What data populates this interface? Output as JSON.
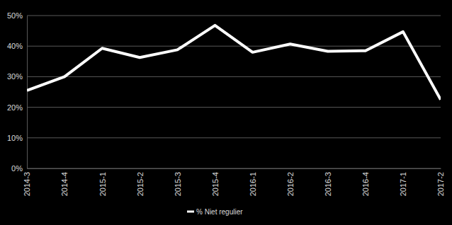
{
  "chart_data": {
    "type": "line",
    "categories": [
      "2014-3",
      "2014-4",
      "2015-1",
      "2015-2",
      "2015-3",
      "2015-4",
      "2016-1",
      "2016-2",
      "2016-3",
      "2016-4",
      "2017-1",
      "2017-2"
    ],
    "series": [
      {
        "name": "% Niet regulier",
        "color": "#ffffff",
        "line_style": "solid",
        "values": [
          25.5,
          30,
          39.3,
          36.3,
          38.8,
          46.8,
          38,
          40.7,
          38.3,
          38.5,
          44.7,
          22.5
        ]
      }
    ],
    "ylim": [
      0,
      50
    ],
    "yticks": [
      {
        "value": 0,
        "label": "0%"
      },
      {
        "value": 10,
        "label": "10%"
      },
      {
        "value": 20,
        "label": "20%"
      },
      {
        "value": 30,
        "label": "30%"
      },
      {
        "value": 40,
        "label": "40%"
      },
      {
        "value": 50,
        "label": "50%"
      }
    ],
    "grid": true,
    "legend": "bottom"
  }
}
